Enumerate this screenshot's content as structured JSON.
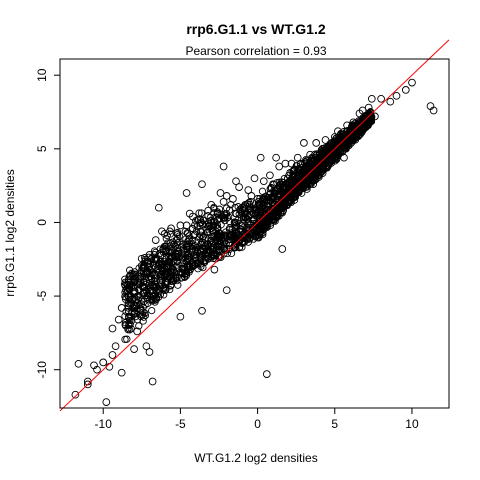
{
  "chart_data": {
    "type": "scatter",
    "title": "rrp6.G1.1 vs WT.G1.2",
    "subtitle": "Pearson correlation =  0.93",
    "xlabel": "WT.G1.2 log2 densities",
    "ylabel": "rrp6.G1.1 log2 densities",
    "xlim": [
      -12.8,
      12.4
    ],
    "ylim": [
      -12.6,
      11.1
    ],
    "x_ticks": [
      -10,
      -5,
      0,
      5,
      10
    ],
    "y_ticks": [
      -10,
      -5,
      0,
      5,
      10
    ],
    "grid": false,
    "reference_line": {
      "slope": 1,
      "intercept": 0,
      "color": "#ff0000"
    },
    "point_style": {
      "marker": "open-circle",
      "color": "#000000"
    },
    "points": [
      [
        -11.8,
        -11.7
      ],
      [
        -11.6,
        -9.6
      ],
      [
        -11.0,
        -10.8
      ],
      [
        -11.0,
        -11.0
      ],
      [
        -10.6,
        -9.7
      ],
      [
        -10.4,
        -10.0
      ],
      [
        -10.0,
        -9.5
      ],
      [
        -9.8,
        -12.2
      ],
      [
        -9.6,
        -9.8
      ],
      [
        -9.4,
        -9.0
      ],
      [
        -9.4,
        -7.2
      ],
      [
        -9.2,
        -8.4
      ],
      [
        -9.0,
        -6.6
      ],
      [
        -8.8,
        -5.8
      ],
      [
        -8.6,
        -4.2
      ],
      [
        -8.4,
        -4.6
      ],
      [
        -8.2,
        -6.4
      ],
      [
        -8.0,
        -8.6
      ],
      [
        -7.8,
        -7.4
      ],
      [
        -7.6,
        -3.8
      ],
      [
        -7.4,
        -3.0
      ],
      [
        -7.2,
        -8.4
      ],
      [
        -7.0,
        -2.2
      ],
      [
        -6.8,
        -10.8
      ],
      [
        -6.6,
        -1.2
      ],
      [
        -6.4,
        -2.8
      ],
      [
        -6.2,
        -0.6
      ],
      [
        -6.0,
        -4.6
      ],
      [
        -5.8,
        -1.4
      ],
      [
        -5.6,
        -0.4
      ],
      [
        -5.4,
        -3.4
      ],
      [
        -5.2,
        -2.2
      ],
      [
        -5.0,
        -0.2
      ],
      [
        -4.8,
        -1.8
      ],
      [
        -4.6,
        -0.2
      ],
      [
        -4.4,
        0.6
      ],
      [
        -4.2,
        0.4
      ],
      [
        -4.0,
        -1.4
      ],
      [
        -3.8,
        0.2
      ],
      [
        -3.6,
        2.6
      ],
      [
        -3.4,
        -2.6
      ],
      [
        -3.2,
        0.8
      ],
      [
        -3.0,
        1.2
      ],
      [
        -2.8,
        -3.2
      ],
      [
        -2.6,
        0.6
      ],
      [
        -2.4,
        2.0
      ],
      [
        -2.2,
        1.4
      ],
      [
        -2.0,
        1.8
      ],
      [
        -1.8,
        -0.4
      ],
      [
        -1.6,
        1.6
      ],
      [
        -1.4,
        2.8
      ],
      [
        -1.2,
        2.4
      ],
      [
        -1.0,
        1.0
      ],
      [
        -0.8,
        1.2
      ],
      [
        -0.6,
        2.2
      ],
      [
        -0.4,
        1.8
      ],
      [
        -0.2,
        3.0
      ],
      [
        0.0,
        1.6
      ],
      [
        0.2,
        4.4
      ],
      [
        0.4,
        2.8
      ],
      [
        0.6,
        -10.3
      ],
      [
        0.8,
        3.2
      ],
      [
        1.0,
        2.6
      ],
      [
        1.2,
        4.4
      ],
      [
        1.4,
        3.8
      ],
      [
        1.6,
        -1.8
      ],
      [
        1.8,
        4.0
      ],
      [
        2.0,
        2.6
      ],
      [
        2.2,
        4.0
      ],
      [
        2.4,
        3.6
      ],
      [
        2.6,
        4.4
      ],
      [
        2.8,
        4.0
      ],
      [
        3.0,
        3.0
      ],
      [
        3.2,
        4.2
      ],
      [
        3.4,
        4.6
      ],
      [
        3.6,
        2.6
      ],
      [
        3.8,
        5.4
      ],
      [
        4.0,
        4.6
      ],
      [
        4.2,
        5.0
      ],
      [
        4.4,
        5.6
      ],
      [
        4.6,
        4.8
      ],
      [
        4.8,
        5.4
      ],
      [
        5.0,
        5.8
      ],
      [
        5.2,
        6.2
      ],
      [
        5.4,
        6.0
      ],
      [
        5.6,
        4.4
      ],
      [
        5.8,
        6.6
      ],
      [
        6.0,
        6.2
      ],
      [
        6.2,
        6.8
      ],
      [
        6.4,
        6.0
      ],
      [
        6.6,
        7.4
      ],
      [
        6.8,
        7.6
      ],
      [
        7.0,
        7.0
      ],
      [
        7.2,
        7.8
      ],
      [
        7.4,
        8.4
      ],
      [
        7.6,
        7.2
      ],
      [
        8.0,
        8.4
      ],
      [
        8.6,
        8.2
      ],
      [
        9.0,
        8.6
      ],
      [
        9.6,
        9.0
      ],
      [
        10.0,
        9.5
      ],
      [
        11.2,
        7.9
      ],
      [
        11.4,
        7.6
      ],
      [
        3.0,
        5.4
      ],
      [
        -8.8,
        -10.2
      ],
      [
        -7.0,
        -8.8
      ],
      [
        -4.0,
        -2.6
      ],
      [
        -1.0,
        -1.4
      ],
      [
        -6.4,
        1.0
      ],
      [
        -4.6,
        2.0
      ],
      [
        -2.2,
        3.8
      ],
      [
        -5.0,
        -6.4
      ],
      [
        -3.6,
        -6.0
      ],
      [
        -2.0,
        -4.6
      ],
      [
        0.2,
        -0.8
      ]
    ],
    "dense_region": {
      "description": "",
      "centerline": [
        [
          -8.6,
          -6.0
        ],
        [
          -6.0,
          -3.2
        ],
        [
          -3.0,
          -1.2
        ],
        [
          0.0,
          -0.2
        ],
        [
          2.0,
          2.0
        ],
        [
          4.0,
          3.8
        ],
        [
          6.0,
          5.8
        ],
        [
          7.4,
          7.2
        ]
      ],
      "upper_spread": [
        2.8,
        2.6,
        2.4,
        2.2,
        1.6,
        1.2,
        0.8,
        0.4
      ],
      "lower_spread": [
        2.4,
        2.0,
        1.6,
        1.2,
        1.0,
        0.8,
        0.6,
        0.4
      ]
    }
  }
}
